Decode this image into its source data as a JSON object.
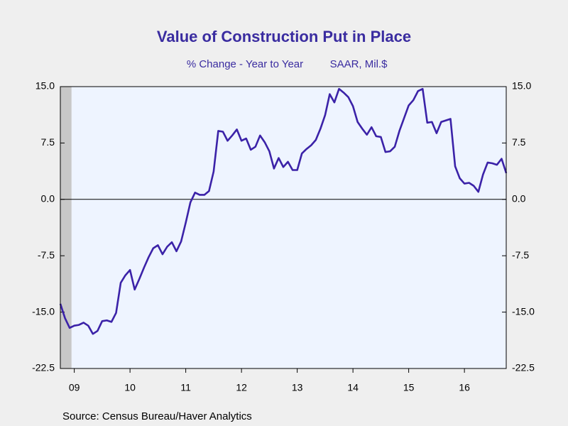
{
  "chart_data": {
    "type": "line",
    "title": "Value of Construction Put in Place",
    "subtitle": "% Change - Year to Year",
    "units": "SAAR, Mil.$",
    "source": "Source:  Census Bureau/Haver Analytics",
    "xlim": [
      2009.25,
      2017.25
    ],
    "ylim": [
      -22.5,
      15
    ],
    "yticks": [
      {
        "value": 15,
        "label": "15.0"
      },
      7.5,
      {
        "value": 0,
        "label": "0.0"
      },
      -7.5,
      {
        "value": -15,
        "label": "-15.0"
      },
      -22.5
    ],
    "xticks": [
      {
        "value": 2009.5,
        "label": "09"
      },
      {
        "value": 2010.5,
        "label": "10"
      },
      {
        "value": 2011.5,
        "label": "11"
      },
      {
        "value": 2012.5,
        "label": "12"
      },
      {
        "value": 2013.5,
        "label": "13"
      },
      {
        "value": 2014.5,
        "label": "14"
      },
      {
        "value": 2015.5,
        "label": "15"
      },
      {
        "value": 2016.5,
        "label": "16"
      }
    ],
    "recession": [
      2009.25,
      2009.45
    ],
    "x": [
      2009.25,
      2009.3333,
      2009.4167,
      2009.5,
      2009.5833,
      2009.6667,
      2009.75,
      2009.8333,
      2009.9167,
      2010.0,
      2010.0833,
      2010.1667,
      2010.25,
      2010.3333,
      2010.4167,
      2010.5,
      2010.5833,
      2010.6667,
      2010.75,
      2010.8333,
      2010.9167,
      2011.0,
      2011.0833,
      2011.1667,
      2011.25,
      2011.3333,
      2011.4167,
      2011.5,
      2011.5833,
      2011.6667,
      2011.75,
      2011.8333,
      2011.9167,
      2012.0,
      2012.0833,
      2012.1667,
      2012.25,
      2012.3333,
      2012.4167,
      2012.5,
      2012.5833,
      2012.6667,
      2012.75,
      2012.8333,
      2012.9167,
      2013.0,
      2013.0833,
      2013.1667,
      2013.25,
      2013.3333,
      2013.4167,
      2013.5,
      2013.5833,
      2013.6667,
      2013.75,
      2013.8333,
      2013.9167,
      2014.0,
      2014.0833,
      2014.1667,
      2014.25,
      2014.3333,
      2014.4167,
      2014.5,
      2014.5833,
      2014.6667,
      2014.75,
      2014.8333,
      2014.9167,
      2015.0,
      2015.0833,
      2015.1667,
      2015.25,
      2015.3333,
      2015.4167,
      2015.5,
      2015.5833,
      2015.6667,
      2015.75,
      2015.8333,
      2015.9167,
      2016.0,
      2016.0833,
      2016.1667,
      2016.25,
      2016.3333,
      2016.4167,
      2016.5,
      2016.5833,
      2016.6667,
      2016.75,
      2016.8333,
      2016.9167,
      2017.0,
      2017.0833,
      2017.1667,
      2017.25
    ],
    "series": [
      {
        "color": "#3b22a8",
        "values": [
          -13.9,
          -15.8,
          -17.1,
          -16.8,
          -16.7,
          -16.4,
          -16.8,
          -17.9,
          -17.5,
          -16.2,
          -16.1,
          -16.3,
          -15.1,
          -11.1,
          -10.1,
          -9.4,
          -12.0,
          -10.6,
          -9.1,
          -7.7,
          -6.5,
          -6.1,
          -7.3,
          -6.3,
          -5.7,
          -6.9,
          -5.6,
          -3.1,
          -0.4,
          0.9,
          0.6,
          0.6,
          1.1,
          3.7,
          9.1,
          9.0,
          7.8,
          8.5,
          9.3,
          7.8,
          8.1,
          6.6,
          7.0,
          8.5,
          7.6,
          6.4,
          4.1,
          5.5,
          4.3,
          5.0,
          3.9,
          3.9,
          6.1,
          6.7,
          7.2,
          7.9,
          9.4,
          11.2,
          14.0,
          12.9,
          14.7,
          14.2,
          13.6,
          12.4,
          10.3,
          9.4,
          8.6,
          9.6,
          8.4,
          8.3,
          6.3,
          6.4,
          7.0,
          9.1,
          10.8,
          12.5,
          13.2,
          14.4,
          14.7,
          10.2,
          10.3,
          8.8,
          10.3,
          10.5,
          10.7,
          4.4,
          2.8,
          2.1,
          2.2,
          1.8,
          1.0,
          3.3,
          4.9,
          4.8,
          4.6,
          5.4,
          3.5
        ]
      }
    ]
  }
}
